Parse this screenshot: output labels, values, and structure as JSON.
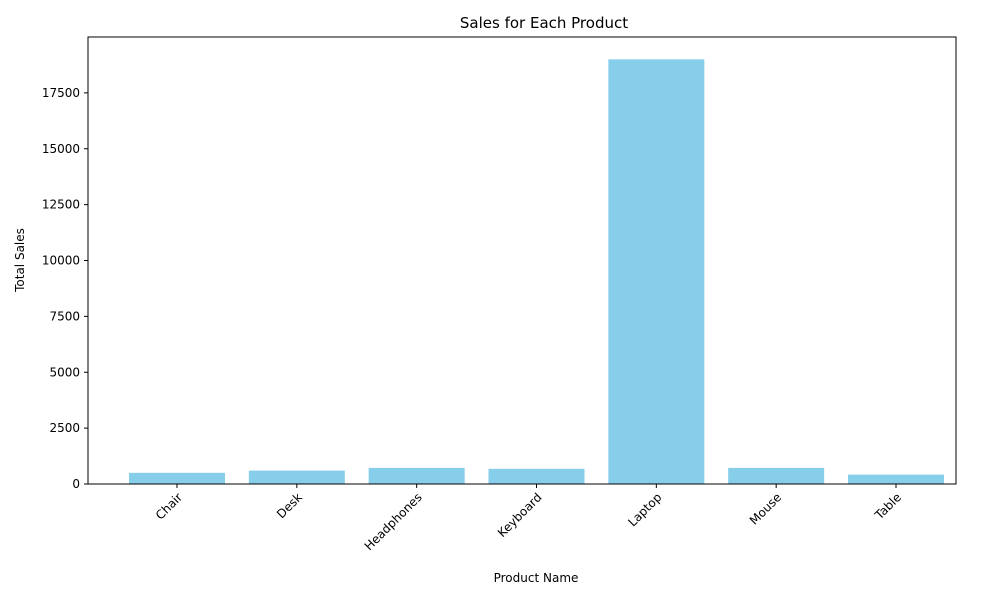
{
  "chart_data": {
    "type": "bar",
    "title": "Sales for Each Product",
    "xlabel": "Product Name",
    "ylabel": "Total Sales",
    "categories": [
      "Chair",
      "Desk",
      "Headphones",
      "Keyboard",
      "Laptop",
      "Mouse",
      "Table"
    ],
    "values": [
      500,
      600,
      720,
      680,
      19000,
      720,
      420
    ],
    "ylim": [
      0,
      20000
    ],
    "yticks": [
      0,
      2500,
      5000,
      7500,
      10000,
      12500,
      15000,
      17500
    ],
    "bar_color": "#87ceeb",
    "grid": false,
    "x_tick_rotation": "45 degrees"
  }
}
